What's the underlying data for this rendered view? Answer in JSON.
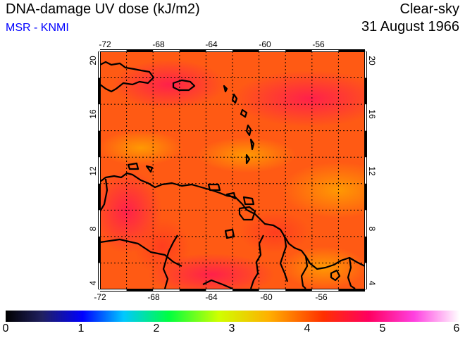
{
  "header": {
    "title": "DNA-damage UV dose (kJ/m2)",
    "source": "MSR - KNMI",
    "sky_condition": "Clear-sky",
    "date": "31 August 1966"
  },
  "map": {
    "lon_ticks": [
      "-72",
      "-68",
      "-64",
      "-60",
      "-56"
    ],
    "lat_ticks": [
      "4",
      "8",
      "12",
      "16",
      "20"
    ],
    "colors": {
      "background": "#ff6a10",
      "coast": "#000000",
      "grid": "#000000",
      "dominant": "#ff3c10",
      "high": "#ff1060"
    }
  },
  "colorbar": {
    "tick_labels": [
      "0",
      "1",
      "2",
      "3",
      "4",
      "5",
      "6"
    ],
    "colors": [
      "#000000",
      "#4040c0",
      "#0000ff",
      "#00c0ff",
      "#00ff60",
      "#c0ff00",
      "#ffc000",
      "#ff6000",
      "#ff0000",
      "#ff00a0",
      "#ff80ff",
      "#ffffff"
    ]
  }
}
